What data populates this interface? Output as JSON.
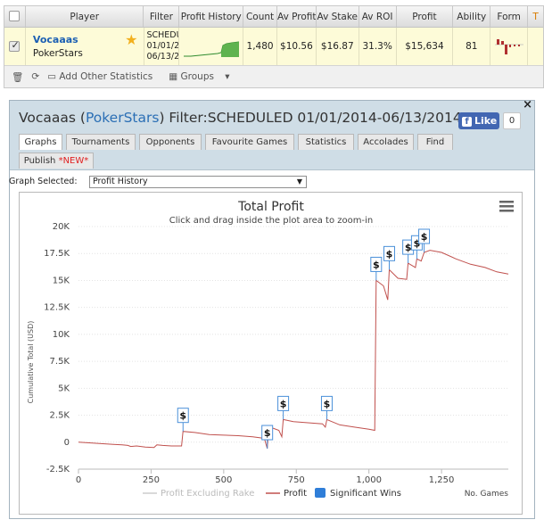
{
  "player_table": {
    "columns": [
      "Player",
      "Filter",
      "Profit History",
      "Count",
      "Av Profit",
      "Av Stake",
      "Av ROI",
      "Profit",
      "Ability",
      "Form",
      "T"
    ],
    "row": {
      "player": "Vocaaas",
      "site": "PokerStars",
      "filter_lines": [
        "SCHEDU",
        "01/01/2",
        "06/13/2"
      ],
      "count": "1,480",
      "av_profit": "$10.56",
      "av_stake": "$16.87",
      "av_roi": "31.3%",
      "profit": "$15,634",
      "ability": "81",
      "checked": true
    },
    "toolbar": {
      "add_stats": "Add Other Statistics",
      "groups": "Groups"
    }
  },
  "dialog": {
    "title_prefix": "Vocaaas (",
    "site_link": "PokerStars",
    "title_suffix": ") Filter:SCHEDULED 01/01/2014-06/13/2014",
    "fb_like": "Like",
    "fb_count": "0",
    "close": "×",
    "tabs_row1": [
      "Graphs",
      "Tournaments",
      "Opponents",
      "Favourite Games",
      "Statistics",
      "Accolades",
      "Find"
    ],
    "tab_publish": "Publish",
    "tab_publish_new": "*NEW*",
    "active_tab": "Graphs",
    "graph_selected_label": "Graph Selected:",
    "graph_selected_value": "Profit History"
  },
  "chart_data": {
    "type": "line",
    "title": "Total Profit",
    "subtitle": "Click and drag inside the plot area to zoom-in",
    "ylabel": "Cumulative Total (USD)",
    "xlabel": "No. Games",
    "xlim": [
      0,
      1480
    ],
    "ylim": [
      -2500,
      20000
    ],
    "x_ticks": [
      "0",
      "250",
      "500",
      "750",
      "1,000",
      "1,250"
    ],
    "x_tick_values": [
      0,
      250,
      500,
      750,
      1000,
      1250
    ],
    "y_ticks": [
      "-2.5K",
      "0",
      "2.5K",
      "5K",
      "7.5K",
      "10K",
      "12.5K",
      "15K",
      "17.5K",
      "20K"
    ],
    "y_tick_values": [
      -2500,
      0,
      2500,
      5000,
      7500,
      10000,
      12500,
      15000,
      17500,
      20000
    ],
    "legend": [
      "Profit Excluding Rake",
      "Profit",
      "Significant Wins"
    ],
    "legend_position": "bottom",
    "series": [
      {
        "name": "Profit",
        "color": "#c0504d",
        "points": [
          [
            0,
            0
          ],
          [
            30,
            -50
          ],
          [
            60,
            -100
          ],
          [
            90,
            -150
          ],
          [
            120,
            -200
          ],
          [
            150,
            -250
          ],
          [
            170,
            -300
          ],
          [
            180,
            -400
          ],
          [
            200,
            -350
          ],
          [
            230,
            -450
          ],
          [
            260,
            -500
          ],
          [
            270,
            -250
          ],
          [
            290,
            -300
          ],
          [
            320,
            -350
          ],
          [
            355,
            -350
          ],
          [
            360,
            1000
          ],
          [
            400,
            900
          ],
          [
            450,
            700
          ],
          [
            500,
            650
          ],
          [
            550,
            600
          ],
          [
            600,
            500
          ],
          [
            640,
            350
          ],
          [
            650,
            -600
          ],
          [
            655,
            1400
          ],
          [
            670,
            1300
          ],
          [
            690,
            1100
          ],
          [
            700,
            500
          ],
          [
            705,
            2100
          ],
          [
            740,
            1900
          ],
          [
            790,
            1800
          ],
          [
            840,
            1700
          ],
          [
            850,
            1400
          ],
          [
            855,
            2100
          ],
          [
            900,
            1600
          ],
          [
            950,
            1400
          ],
          [
            1000,
            1200
          ],
          [
            1020,
            1100
          ],
          [
            1025,
            15000
          ],
          [
            1050,
            14500
          ],
          [
            1065,
            13200
          ],
          [
            1070,
            16000
          ],
          [
            1100,
            15200
          ],
          [
            1130,
            15100
          ],
          [
            1135,
            16600
          ],
          [
            1160,
            16200
          ],
          [
            1165,
            17000
          ],
          [
            1180,
            16800
          ],
          [
            1190,
            17600
          ],
          [
            1210,
            17800
          ],
          [
            1250,
            17600
          ],
          [
            1300,
            17000
          ],
          [
            1350,
            16500
          ],
          [
            1400,
            16200
          ],
          [
            1440,
            15800
          ],
          [
            1480,
            15600
          ]
        ]
      },
      {
        "name": "Significant Wins",
        "marker": "$",
        "x": [
          360,
          650,
          705,
          855,
          1025,
          1070,
          1135,
          1165,
          1190
        ]
      }
    ],
    "grid": true
  }
}
